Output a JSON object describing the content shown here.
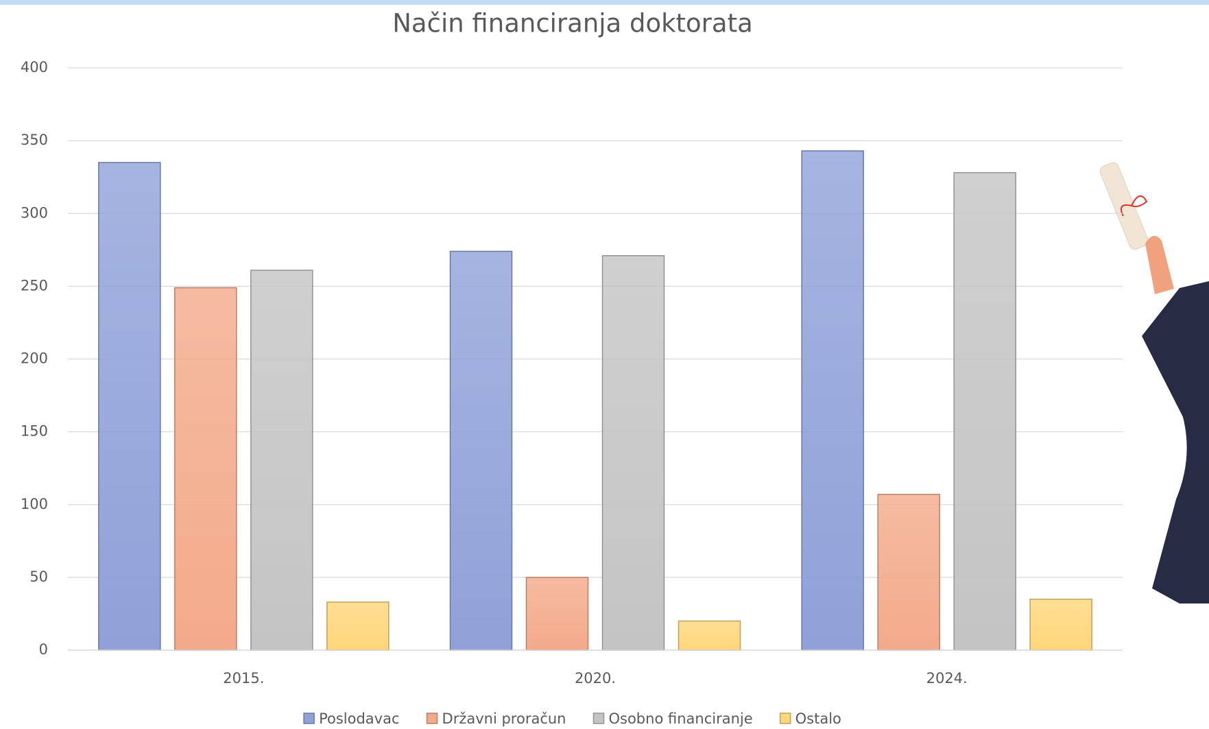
{
  "chart_data": {
    "type": "bar",
    "title": "Način financiranja doktorata",
    "categories": [
      "2015.",
      "2020.",
      "2024."
    ],
    "series": [
      {
        "name": "Poslodavac",
        "color": "#8fa1d8",
        "values": [
          335,
          274,
          343
        ]
      },
      {
        "name": "Državni proračun",
        "color": "#f3aa8a",
        "values": [
          249,
          50,
          107
        ]
      },
      {
        "name": "Osobno financiranje",
        "color": "#c4c4c4",
        "values": [
          261,
          271,
          328
        ]
      },
      {
        "name": "Ostalo",
        "color": "#ffd67a",
        "values": [
          33,
          20,
          35
        ]
      }
    ],
    "ylim": [
      0,
      400
    ],
    "yticks": [
      0,
      50,
      100,
      150,
      200,
      250,
      300,
      350,
      400
    ],
    "grid": true,
    "legend": "bottom"
  }
}
